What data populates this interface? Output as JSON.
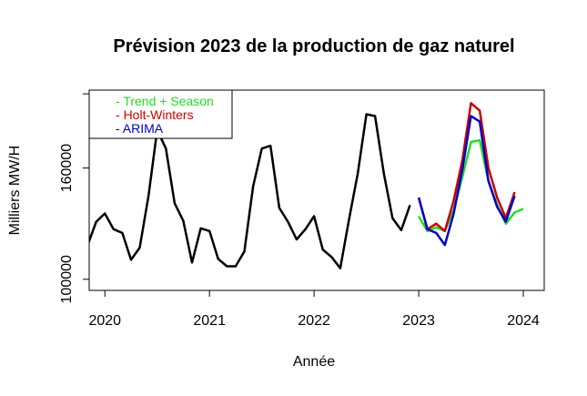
{
  "chart_data": {
    "type": "line",
    "title": "Prévision 2023 de la production de gaz naturel",
    "xlabel": "Année",
    "ylabel": "Milliers MW/H",
    "xlim": [
      2019.85,
      2024.2
    ],
    "ylim": [
      94000,
      202000
    ],
    "x_ticks": [
      2020,
      2021,
      2022,
      2023,
      2024
    ],
    "x_tick_labels": [
      "2020",
      "2021",
      "2022",
      "2023",
      "2024"
    ],
    "y_ticks": [
      100000,
      160000,
      200000
    ],
    "y_tick_labels": [
      "100000",
      "160000",
      ""
    ],
    "grid": false,
    "legend_position": "top-left",
    "legend": [
      {
        "label": "Trend + Season",
        "color": "#22dd22"
      },
      {
        "label": "Holt-Winters",
        "color": "#cc0000"
      },
      {
        "label": "ARIMA",
        "color": "#0000cc"
      }
    ],
    "series": [
      {
        "color": "#000000",
        "x": [
          2019.833,
          2019.917,
          2020.0,
          2020.083,
          2020.167,
          2020.25,
          2020.333,
          2020.417,
          2020.5,
          2020.583,
          2020.667,
          2020.75,
          2020.833,
          2020.917,
          2021.0,
          2021.083,
          2021.167,
          2021.25,
          2021.333,
          2021.417,
          2021.5,
          2021.583,
          2021.667,
          2021.75,
          2021.833,
          2021.917,
          2022.0,
          2022.083,
          2022.167,
          2022.25,
          2022.333,
          2022.417,
          2022.5,
          2022.583,
          2022.667,
          2022.75,
          2022.833,
          2022.917
        ],
        "y": [
          118000,
          131000,
          135500,
          127000,
          125000,
          110500,
          117000,
          145000,
          180500,
          170500,
          141000,
          131500,
          109000,
          127500,
          126000,
          111000,
          107000,
          107000,
          115000,
          150000,
          170500,
          172000,
          138500,
          131000,
          121500,
          127000,
          134000,
          116000,
          112000,
          106000,
          132000,
          157000,
          189000,
          188000,
          157000,
          133000,
          126500,
          140000
        ]
      },
      {
        "name": "Trend + Season",
        "color": "#22dd22",
        "x": [
          2023.0,
          2023.083,
          2023.167,
          2023.25,
          2023.333,
          2023.417,
          2023.5,
          2023.583,
          2023.667,
          2023.75,
          2023.833,
          2023.917,
          2024.0
        ],
        "y": [
          134000,
          126000,
          128000,
          126000,
          137000,
          155000,
          174000,
          175000,
          153000,
          140000,
          130000,
          136000,
          138000
        ]
      },
      {
        "name": "Holt-Winters",
        "color": "#cc0000",
        "x": [
          2023.0,
          2023.083,
          2023.167,
          2023.25,
          2023.333,
          2023.417,
          2023.5,
          2023.583,
          2023.667,
          2023.75,
          2023.833,
          2023.917
        ],
        "y": [
          144000,
          127000,
          130000,
          126000,
          142000,
          164000,
          195000,
          191000,
          160000,
          144000,
          133000,
          147000
        ]
      },
      {
        "name": "ARIMA",
        "color": "#0000cc",
        "x": [
          2023.0,
          2023.083,
          2023.167,
          2023.25,
          2023.333,
          2023.417,
          2023.5,
          2023.583,
          2023.667,
          2023.75,
          2023.833,
          2023.917
        ],
        "y": [
          144000,
          127000,
          125000,
          118500,
          135000,
          159000,
          188000,
          185000,
          153000,
          139000,
          131000,
          145000
        ]
      }
    ]
  }
}
